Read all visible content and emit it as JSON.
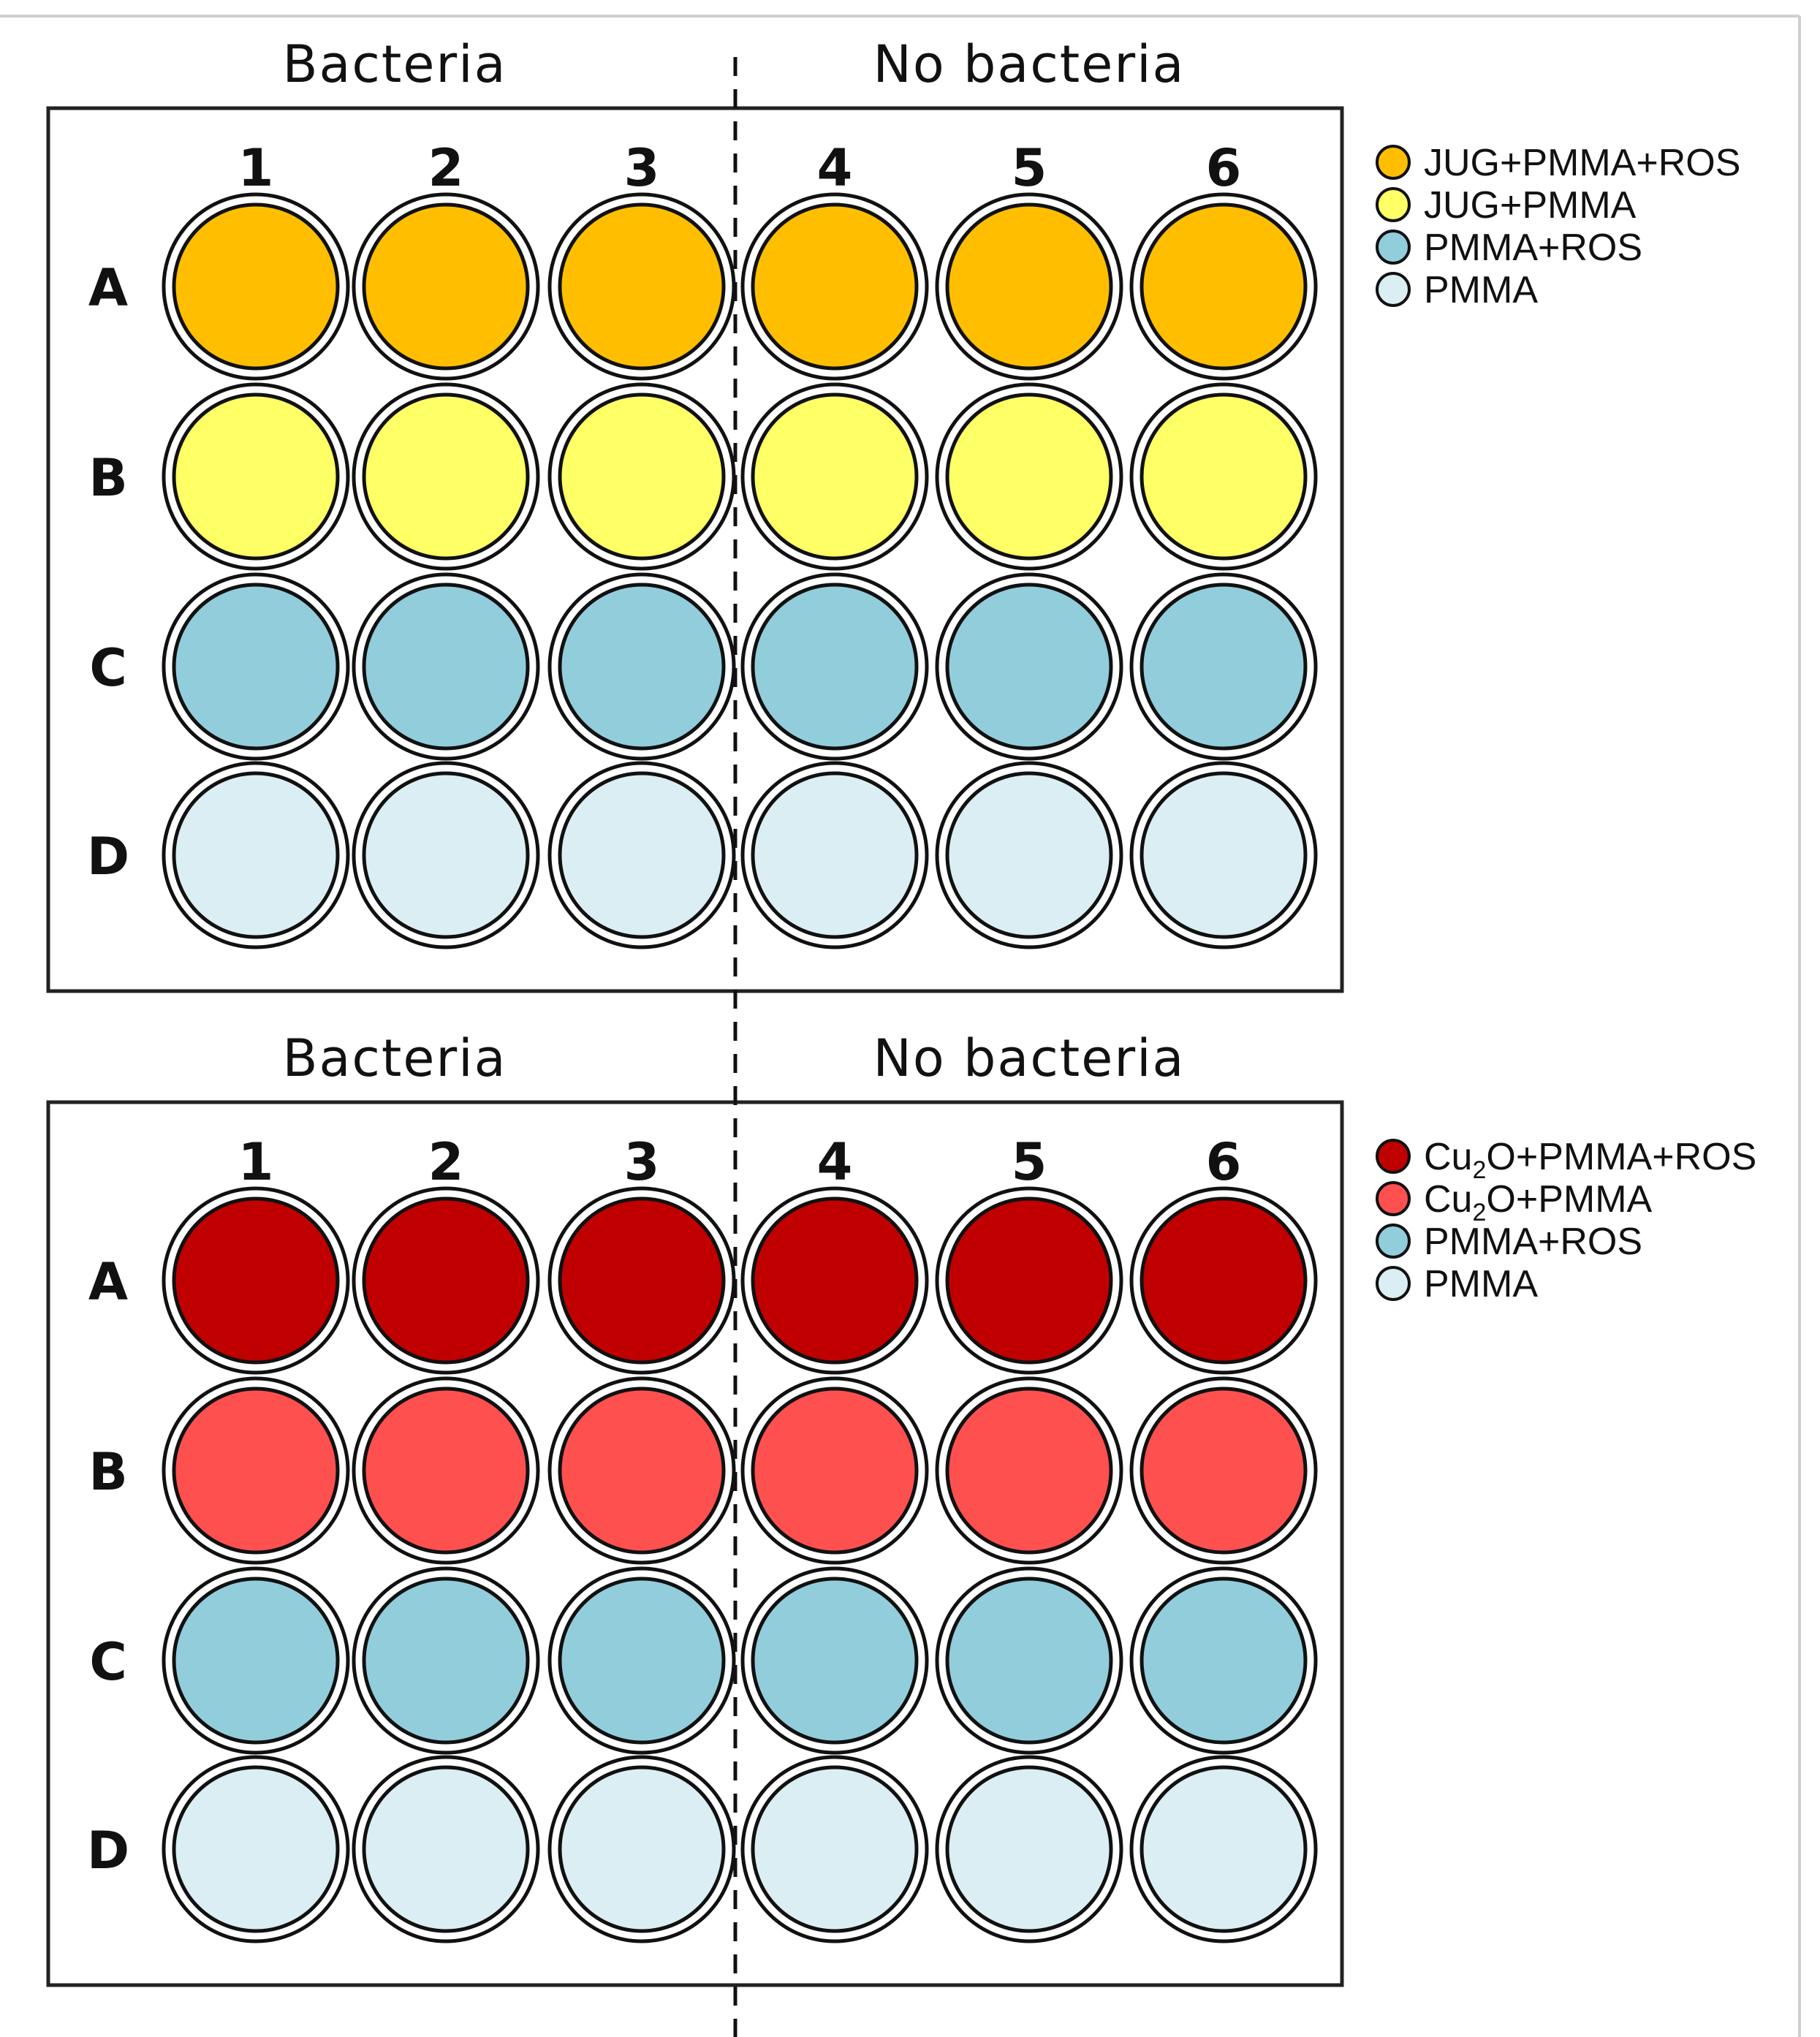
{
  "panels": [
    {
      "left_title": "Bacteria",
      "right_title": "No bacteria",
      "columns": [
        "1",
        "2",
        "3",
        "4",
        "5",
        "6"
      ],
      "rows": [
        {
          "label": "A",
          "color": "#FFBF00"
        },
        {
          "label": "B",
          "color": "#FFFF66"
        },
        {
          "label": "C",
          "color": "#92CDDC"
        },
        {
          "label": "D",
          "color": "#DAEEF3"
        }
      ],
      "legend": [
        {
          "parts": [
            "JUG+PMMA+ROS"
          ],
          "color": "#FFBF00"
        },
        {
          "parts": [
            "JUG+PMMA"
          ],
          "color": "#FFFF66"
        },
        {
          "parts": [
            "PMMA+ROS"
          ],
          "color": "#92CDDC"
        },
        {
          "parts": [
            "PMMA"
          ],
          "color": "#DAEEF3"
        }
      ]
    },
    {
      "left_title": "Bacteria",
      "right_title": "No bacteria",
      "columns": [
        "1",
        "2",
        "3",
        "4",
        "5",
        "6"
      ],
      "rows": [
        {
          "label": "A",
          "color": "#C00000"
        },
        {
          "label": "B",
          "color": "#FF5050"
        },
        {
          "label": "C",
          "color": "#92CDDC"
        },
        {
          "label": "D",
          "color": "#DAEEF3"
        }
      ],
      "legend": [
        {
          "parts": [
            "Cu",
            "2",
            "O+PMMA+ROS"
          ],
          "color": "#C00000"
        },
        {
          "parts": [
            "Cu",
            "2",
            "O+PMMA"
          ],
          "color": "#FF5050"
        },
        {
          "parts": [
            "PMMA+ROS"
          ],
          "color": "#92CDDC"
        },
        {
          "parts": [
            "PMMA"
          ],
          "color": "#DAEEF3"
        }
      ]
    }
  ]
}
